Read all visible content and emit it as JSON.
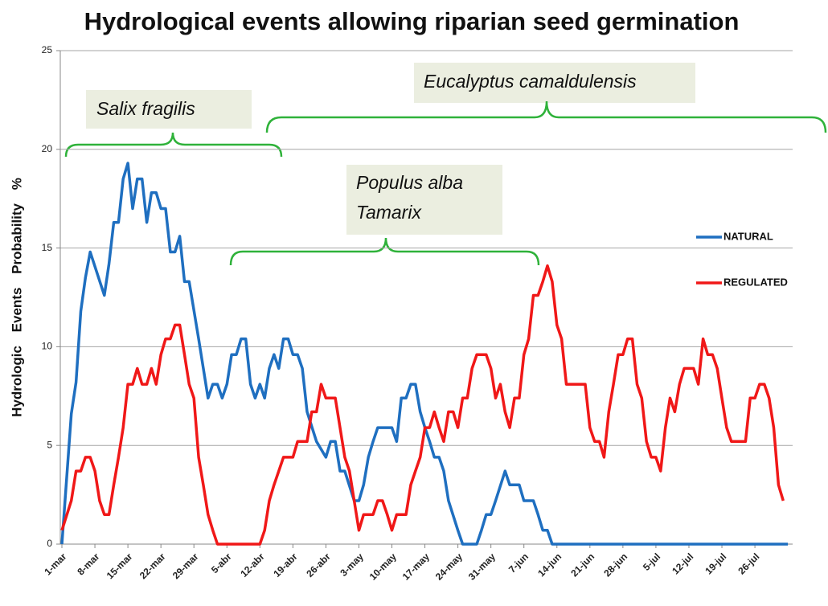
{
  "chart_data": {
    "type": "line",
    "title": "Hydrological events allowing riparian seed germination",
    "y_label": "Hydrologic Events Probability %",
    "annotations": [
      "Salix fragilis",
      "Eucalyptus camaldulensis",
      "Populus alba",
      "Tamarix"
    ],
    "xlim": [
      0,
      155
    ],
    "xticks": [
      {
        "value": 0,
        "label": "1-mar"
      },
      {
        "value": 7,
        "label": "8-mar"
      },
      {
        "value": 14,
        "label": "15-mar"
      },
      {
        "value": 21,
        "label": "22-mar"
      },
      {
        "value": 28,
        "label": "29-mar"
      },
      {
        "value": 35,
        "label": "5-abr"
      },
      {
        "value": 42,
        "label": "12-abr"
      },
      {
        "value": 49,
        "label": "19-abr"
      },
      {
        "value": 56,
        "label": "26-abr"
      },
      {
        "value": 63,
        "label": "3-may"
      },
      {
        "value": 70,
        "label": "10-may"
      },
      {
        "value": 77,
        "label": "17-may"
      },
      {
        "value": 84,
        "label": "24-may"
      },
      {
        "value": 91,
        "label": "31-may"
      },
      {
        "value": 98,
        "label": "7-jun"
      },
      {
        "value": 105,
        "label": "14-jun"
      },
      {
        "value": 112,
        "label": "21-jun"
      },
      {
        "value": 119,
        "label": "28-jun"
      },
      {
        "value": 126,
        "label": "5-jul"
      },
      {
        "value": 133,
        "label": "12-jul"
      },
      {
        "value": 140,
        "label": "19-jul"
      },
      {
        "value": 147,
        "label": "26-jul"
      }
    ],
    "ylim": [
      0,
      25
    ],
    "yticks": [
      0,
      5,
      10,
      15,
      20,
      25
    ],
    "grid": true,
    "legend": "right",
    "series": [
      {
        "name": "NATURAL",
        "color": "#1f6fc0",
        "x": [
          0,
          2,
          3,
          4,
          5,
          6,
          9,
          10,
          11,
          12,
          13,
          14,
          15,
          16,
          17,
          18,
          19,
          20,
          21,
          22,
          23,
          24,
          25,
          26,
          27,
          29,
          31,
          32,
          33,
          34,
          35,
          36,
          37,
          38,
          39,
          40,
          41,
          42,
          43,
          44,
          45,
          46,
          47,
          48,
          49,
          50,
          51,
          52,
          54,
          56,
          57,
          58,
          59,
          60,
          62,
          63,
          64,
          65,
          66,
          67,
          70,
          71,
          72,
          73,
          74,
          75,
          76,
          77,
          78,
          79,
          80,
          81,
          82,
          84,
          85,
          88,
          89,
          90,
          91,
          92,
          94,
          95,
          97,
          98,
          100,
          101,
          102,
          103,
          104,
          154
        ],
        "values": [
          0,
          6.6,
          8.2,
          11.8,
          13.5,
          14.8,
          12.6,
          14.2,
          16.3,
          16.3,
          18.5,
          19.3,
          17.0,
          18.5,
          18.5,
          16.3,
          17.8,
          17.8,
          17.0,
          17.0,
          14.8,
          14.8,
          15.6,
          13.3,
          13.3,
          10.4,
          7.4,
          8.1,
          8.1,
          7.4,
          8.1,
          9.6,
          9.6,
          10.4,
          10.4,
          8.1,
          7.4,
          8.1,
          7.4,
          8.9,
          9.6,
          8.9,
          10.4,
          10.4,
          9.6,
          9.6,
          8.9,
          6.7,
          5.2,
          4.4,
          5.2,
          5.2,
          3.7,
          3.7,
          2.2,
          2.2,
          3.0,
          4.4,
          5.2,
          5.9,
          5.9,
          5.2,
          7.4,
          7.4,
          8.1,
          8.1,
          6.7,
          5.9,
          5.2,
          4.4,
          4.4,
          3.7,
          2.2,
          0.7,
          0,
          0,
          0.7,
          1.5,
          1.5,
          2.2,
          3.7,
          3.0,
          3.0,
          2.2,
          2.2,
          1.5,
          0.7,
          0.7,
          0,
          0
        ]
      },
      {
        "name": "REGULATED",
        "color": "#f01818",
        "x": [
          0,
          2,
          3,
          4,
          5,
          6,
          7,
          8,
          9,
          10,
          11,
          12,
          13,
          14,
          15,
          16,
          17,
          18,
          19,
          20,
          21,
          22,
          23,
          24,
          25,
          26,
          27,
          28,
          29,
          30,
          31,
          32,
          33,
          42,
          43,
          44,
          45,
          46,
          47,
          49,
          50,
          52,
          53,
          54,
          55,
          56,
          58,
          59,
          60,
          61,
          62,
          63,
          64,
          66,
          67,
          68,
          69,
          70,
          71,
          73,
          74,
          75,
          76,
          77,
          78,
          79,
          80,
          81,
          82,
          83,
          84,
          85,
          86,
          87,
          88,
          90,
          91,
          92,
          93,
          94,
          95,
          96,
          97,
          98,
          99,
          100,
          101,
          102,
          103,
          104,
          105,
          106,
          107,
          110,
          111,
          112,
          113,
          114,
          115,
          116,
          117,
          118,
          119,
          120,
          121,
          122,
          123,
          124,
          125,
          126,
          127,
          128,
          129,
          130,
          131,
          132,
          134,
          135,
          136,
          137,
          138,
          139,
          140,
          141,
          142,
          145,
          146,
          147,
          148,
          149,
          150,
          151,
          152,
          153
        ],
        "values": [
          0.7,
          2.2,
          3.7,
          3.7,
          4.4,
          4.4,
          3.7,
          2.2,
          1.5,
          1.5,
          3.0,
          4.4,
          5.9,
          8.1,
          8.1,
          8.9,
          8.1,
          8.1,
          8.9,
          8.1,
          9.6,
          10.4,
          10.4,
          11.1,
          11.1,
          9.6,
          8.1,
          7.4,
          4.4,
          3.0,
          1.5,
          0.7,
          0,
          0,
          0.7,
          2.2,
          3.0,
          3.7,
          4.4,
          4.4,
          5.2,
          5.2,
          6.7,
          6.7,
          8.1,
          7.4,
          7.4,
          5.9,
          4.4,
          3.7,
          2.2,
          0.7,
          1.5,
          1.5,
          2.2,
          2.2,
          1.5,
          0.7,
          1.5,
          1.5,
          3.0,
          3.7,
          4.4,
          5.9,
          5.9,
          6.7,
          5.9,
          5.2,
          6.7,
          6.7,
          5.9,
          7.4,
          7.4,
          8.9,
          9.6,
          9.6,
          8.9,
          7.4,
          8.1,
          6.7,
          5.9,
          7.4,
          7.4,
          9.6,
          10.4,
          12.6,
          12.6,
          13.3,
          14.1,
          13.3,
          11.1,
          10.4,
          8.1,
          8.1,
          8.1,
          5.9,
          5.2,
          5.2,
          4.4,
          6.7,
          8.1,
          9.6,
          9.6,
          10.4,
          10.4,
          8.1,
          7.4,
          5.2,
          4.4,
          4.4,
          3.7,
          5.9,
          7.4,
          6.7,
          8.1,
          8.9,
          8.9,
          8.1,
          10.4,
          9.6,
          9.6,
          8.9,
          7.4,
          5.9,
          5.2,
          5.2,
          7.4,
          7.4,
          8.1,
          8.1,
          7.4,
          5.9,
          3.0,
          2.2
        ]
      }
    ]
  }
}
